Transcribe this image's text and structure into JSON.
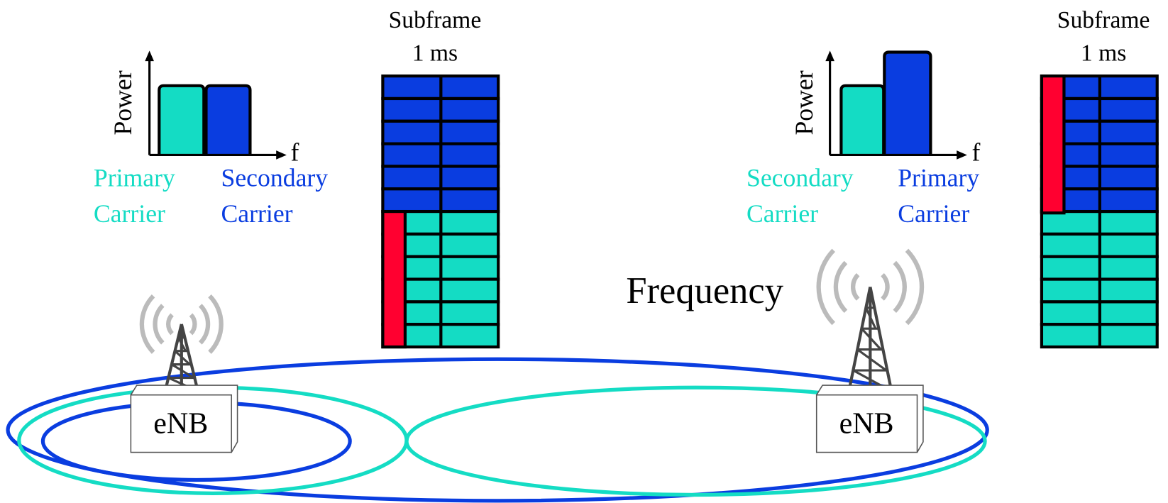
{
  "left_cell": {
    "subframe_label": "Subframe",
    "duration_label": "1 ms",
    "spectrum": {
      "y_axis": "Power",
      "x_axis": "f",
      "carriers": [
        {
          "lines": [
            "Primary",
            "Carrier"
          ]
        },
        {
          "lines": [
            "Secondary",
            "Carrier"
          ]
        }
      ]
    },
    "base_station": "eNB"
  },
  "right_cell": {
    "subframe_label": "Subframe",
    "duration_label": "1 ms",
    "spectrum": {
      "y_axis": "Power",
      "x_axis": "f",
      "carriers": [
        {
          "lines": [
            "Secondary",
            "Carrier"
          ]
        },
        {
          "lines": [
            "Primary",
            "Carrier"
          ]
        }
      ]
    },
    "base_station": "eNB"
  },
  "center_label": "Frequency"
}
